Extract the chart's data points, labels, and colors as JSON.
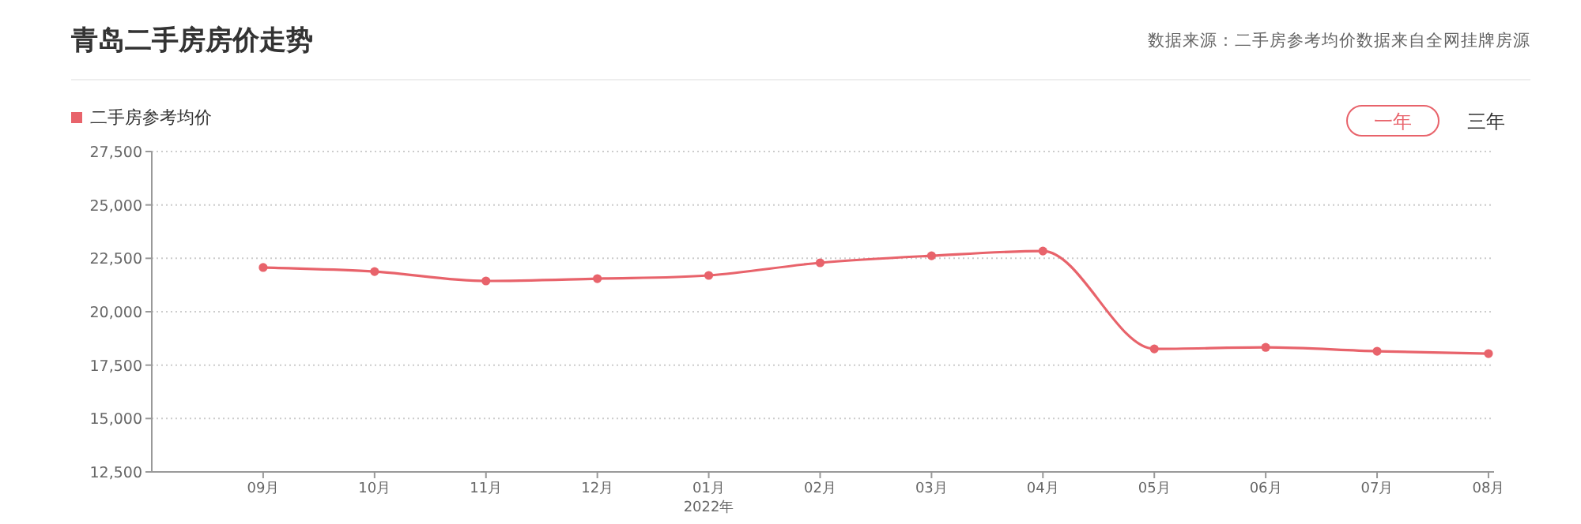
{
  "chart_data": {
    "type": "line",
    "title": "青岛二手房房价走势",
    "annotations": [
      "数据来源：二手房参考均价数据来自全网挂牌房源",
      "一年",
      "三年",
      "2022年"
    ],
    "categories": [
      "09月",
      "10月",
      "11月",
      "12月",
      "01月",
      "02月",
      "03月",
      "04月",
      "05月",
      "06月",
      "07月",
      "08月"
    ],
    "series": [
      {
        "name": "二手房参考均价",
        "color": "#e8636b",
        "values": [
          22070,
          21880,
          21440,
          21550,
          21700,
          22290,
          22620,
          22840,
          18260,
          18330,
          18150,
          18040
        ]
      }
    ],
    "ylim": [
      12500,
      27500
    ],
    "yticks": [
      {
        "value": 12500,
        "label": "12,500"
      },
      {
        "value": 15000,
        "label": "15,000"
      },
      {
        "value": 17500,
        "label": "17,500"
      },
      {
        "value": 20000,
        "label": "20,000"
      },
      {
        "value": 22500,
        "label": "22,500"
      },
      {
        "value": 25000,
        "label": "25,000"
      },
      {
        "value": 27500,
        "label": "27,500"
      }
    ],
    "grid": "y",
    "legend": "top left",
    "marker": "circle",
    "line_style": "solid"
  }
}
